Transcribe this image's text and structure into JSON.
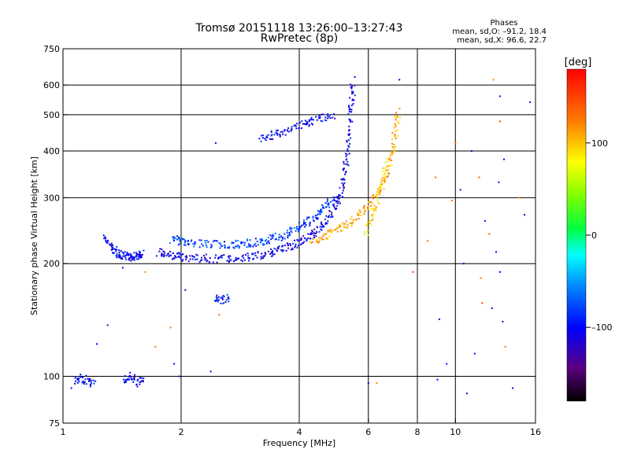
{
  "title": "Tromsø 20151118 13:26:00–13:27:43",
  "subtitle": "RwPretec (8p)",
  "info": {
    "header": "Phases",
    "line_o": "mean, sd,O: –91.2, 18.4",
    "line_x": "mean, sd,X:  96.6, 22.7"
  },
  "chart_data": {
    "type": "scatter",
    "xlabel": "Frequency [MHz]",
    "ylabel": "Stationary phase Virtual Height [km]",
    "xscale": "log",
    "yscale": "log",
    "xlim": [
      1,
      16
    ],
    "ylim": [
      75,
      750
    ],
    "xticks": [
      1,
      2,
      4,
      6,
      8,
      10,
      16
    ],
    "xtick_labels": [
      "1",
      "2",
      "4",
      "6",
      "8",
      "10",
      "16"
    ],
    "xgrid": [
      2,
      4,
      6,
      8,
      10
    ],
    "yticks": [
      75,
      100,
      200,
      300,
      400,
      500,
      600,
      750
    ],
    "ytick_labels": [
      "75",
      "100",
      "200",
      "300",
      "400",
      "500",
      "600",
      "750"
    ],
    "ygrid": [
      100,
      200,
      300,
      400,
      500,
      600
    ],
    "grid": true,
    "colorbar": {
      "label": "[deg]",
      "range": [
        -180,
        180
      ],
      "ticks": [
        100,
        0,
        -100
      ],
      "tick_labels": [
        "100",
        "0",
        "–100"
      ]
    },
    "traces": [
      {
        "name": "O-trace low",
        "x": [
          1.28,
          1.32,
          1.36,
          1.4,
          1.44,
          1.48,
          1.52,
          1.56,
          1.6
        ],
        "y": [
          235,
          225,
          215,
          212,
          210,
          208,
          209,
          210,
          212
        ],
        "phase": -100
      },
      {
        "name": "O-trace main",
        "x": [
          1.75,
          1.85,
          1.95,
          2.05,
          2.2,
          2.4,
          2.6,
          2.8,
          3.0,
          3.2,
          3.4,
          3.6,
          3.8,
          4.0,
          4.2,
          4.4,
          4.6,
          4.8,
          5.0,
          5.1,
          5.2,
          5.3,
          5.35,
          5.4,
          5.45,
          5.5
        ],
        "y": [
          215,
          212,
          210,
          208,
          207,
          206,
          206,
          207,
          209,
          211,
          214,
          218,
          223,
          228,
          234,
          242,
          252,
          268,
          290,
          310,
          340,
          380,
          430,
          500,
          560,
          620
        ],
        "phase": -105
      },
      {
        "name": "O-trace upper",
        "x": [
          1.9,
          2.0,
          2.1,
          2.3,
          2.5,
          2.7,
          2.9,
          3.1,
          3.3,
          3.5,
          3.7,
          3.9,
          4.1,
          4.3,
          4.5,
          4.7,
          4.9
        ],
        "y": [
          232,
          230,
          228,
          226,
          225,
          225,
          226,
          228,
          231,
          235,
          240,
          246,
          253,
          262,
          272,
          285,
          300
        ],
        "phase": -80
      },
      {
        "name": "Oblique O",
        "x": [
          3.2,
          3.4,
          3.6,
          3.8,
          4.1,
          4.3,
          4.6,
          4.9
        ],
        "y": [
          430,
          440,
          445,
          455,
          470,
          480,
          490,
          500
        ],
        "phase": -100
      },
      {
        "name": "X-trace",
        "x": [
          4.3,
          4.6,
          4.9,
          5.2,
          5.5,
          5.8,
          6.1,
          6.4,
          6.6,
          6.8,
          6.95,
          7.05,
          7.15
        ],
        "y": [
          228,
          235,
          243,
          252,
          262,
          275,
          290,
          310,
          335,
          370,
          410,
          460,
          510
        ],
        "phase": 110
      },
      {
        "name": "X-trace inner",
        "x": [
          5.9,
          6.1,
          6.3,
          6.5,
          6.7
        ],
        "y": [
          240,
          262,
          290,
          330,
          380
        ],
        "phase": 90
      },
      {
        "name": "Low echoes 1.1",
        "x": [
          1.08,
          1.12,
          1.16,
          1.2
        ],
        "y": [
          97,
          99,
          96,
          98
        ],
        "phase": -100
      },
      {
        "name": "Low echoes 1.5",
        "x": [
          1.42,
          1.48,
          1.54,
          1.6
        ],
        "y": [
          98,
          100,
          96,
          99
        ],
        "phase": -105
      },
      {
        "name": "Spread 2.5",
        "x": [
          2.45,
          2.55,
          2.65
        ],
        "y": [
          162,
          160,
          162
        ],
        "phase": -95
      }
    ],
    "scatter": [
      [
        1.05,
        93,
        -100
      ],
      [
        1.42,
        195,
        -110
      ],
      [
        1.3,
        137,
        -130
      ],
      [
        1.22,
        122,
        -100
      ],
      [
        1.72,
        120,
        120
      ],
      [
        1.88,
        135,
        130
      ],
      [
        1.92,
        108,
        -100
      ],
      [
        1.98,
        100,
        -100
      ],
      [
        1.62,
        190,
        120
      ],
      [
        2.05,
        170,
        -100
      ],
      [
        2.45,
        420,
        -100
      ],
      [
        2.38,
        103,
        -100
      ],
      [
        2.5,
        146,
        140
      ],
      [
        9.1,
        142,
        -110
      ],
      [
        9.0,
        98,
        -100
      ],
      [
        9.5,
        108,
        -100
      ],
      [
        8.5,
        230,
        130
      ],
      [
        10.0,
        420,
        140
      ],
      [
        10.3,
        315,
        -120
      ],
      [
        11.0,
        400,
        -100
      ],
      [
        12.5,
        620,
        120
      ],
      [
        13.0,
        480,
        150
      ],
      [
        13.3,
        380,
        -100
      ],
      [
        12.9,
        330,
        -100
      ],
      [
        11.6,
        183,
        130
      ],
      [
        11.7,
        157,
        150
      ],
      [
        12.4,
        152,
        -100
      ],
      [
        13.2,
        140,
        -110
      ],
      [
        11.2,
        115,
        -100
      ],
      [
        10.7,
        90,
        -100
      ],
      [
        14.0,
        93,
        -100
      ],
      [
        13.0,
        190,
        -105
      ],
      [
        14.5,
        300,
        120
      ],
      [
        12.2,
        240,
        140
      ],
      [
        11.9,
        260,
        -90
      ],
      [
        13.0,
        560,
        -105
      ],
      [
        10.5,
        200,
        -100
      ],
      [
        7.8,
        190,
        150
      ],
      [
        15.5,
        540,
        -100
      ],
      [
        13.4,
        120,
        130
      ],
      [
        7.2,
        620,
        -105
      ],
      [
        6.3,
        96,
        120
      ],
      [
        6.0,
        96,
        -100
      ],
      [
        8.9,
        340,
        140
      ],
      [
        9.8,
        295,
        130
      ],
      [
        11.5,
        340,
        140
      ],
      [
        12.7,
        215,
        -100
      ],
      [
        15.0,
        270,
        -100
      ]
    ]
  }
}
